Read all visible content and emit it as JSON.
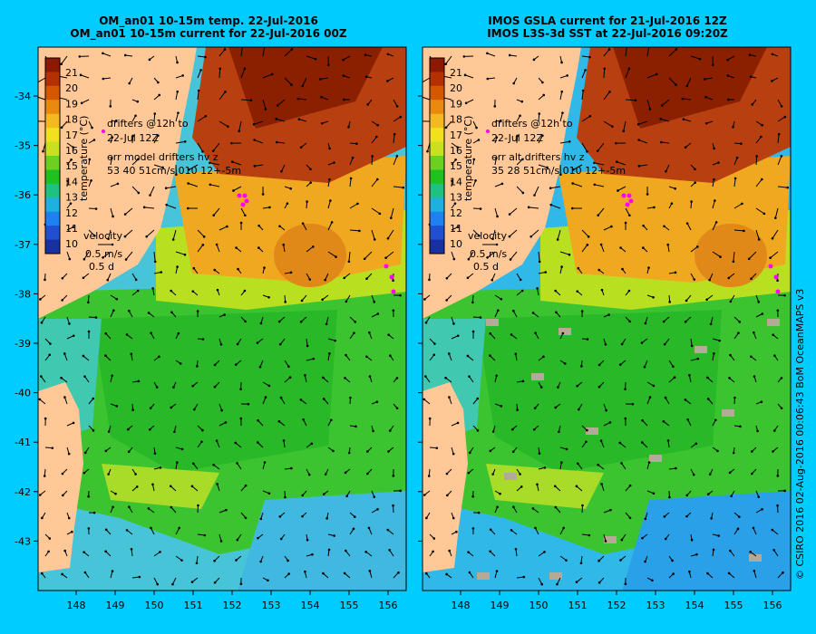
{
  "panels": [
    {
      "id": "model",
      "title_line1": "OM_an01 10-15m temp. 22-Jul-2016",
      "title_line2": "OM_an01 10-15m current for 22-Jul-2016 00Z",
      "drifters_text_1": "drifters @12h to",
      "drifters_text_2": "22-Jul 12Z",
      "err_text_1": "err model drifters hv z",
      "err_text_2": "53 40 51cm/s 010 12+-5m"
    },
    {
      "id": "obs",
      "title_line1": "IMOS GSLA current for 21-Jul-2016 12Z",
      "title_line2": "IMOS L3S-3d SST at 22-Jul-2016 09:20Z",
      "drifters_text_1": "drifters @12h to",
      "drifters_text_2": "22-Jul 12Z",
      "err_text_1": "err alt drifters hv z",
      "err_text_2": "35 28 51cm/s 010 12+-5m"
    }
  ],
  "colorbar": {
    "label": "temperature (°C)",
    "ticks": [
      "21",
      "20",
      "19",
      "18",
      "17",
      "16",
      "15",
      "14",
      "13",
      "12",
      "11",
      "10"
    ],
    "colors": [
      "#8b1a00",
      "#b33000",
      "#d45800",
      "#e88a10",
      "#f4b820",
      "#f0e020",
      "#c8e020",
      "#6cd020",
      "#20c020",
      "#20c080",
      "#20b0e0",
      "#2080f0",
      "#2050d0",
      "#1830a0"
    ]
  },
  "velocity_key": {
    "label": "velocity",
    "speed": "0.5 m/s",
    "duration": "0.5 d"
  },
  "lat_ticks": [
    "-34",
    "-35",
    "-36",
    "-37",
    "-38",
    "-39",
    "-40",
    "-41",
    "-42",
    "-43"
  ],
  "lon_ticks": [
    "148",
    "149",
    "150",
    "151",
    "152",
    "153",
    "154",
    "155",
    "156"
  ],
  "credit": "© CSIRO 2016  02-Aug-2016 00:06:43 BoM OceanMAPS v3",
  "colors": {
    "background": "#00ccff",
    "land": "#ffc896",
    "missing": "#b4aa96",
    "drifter": "#ff00ff"
  }
}
